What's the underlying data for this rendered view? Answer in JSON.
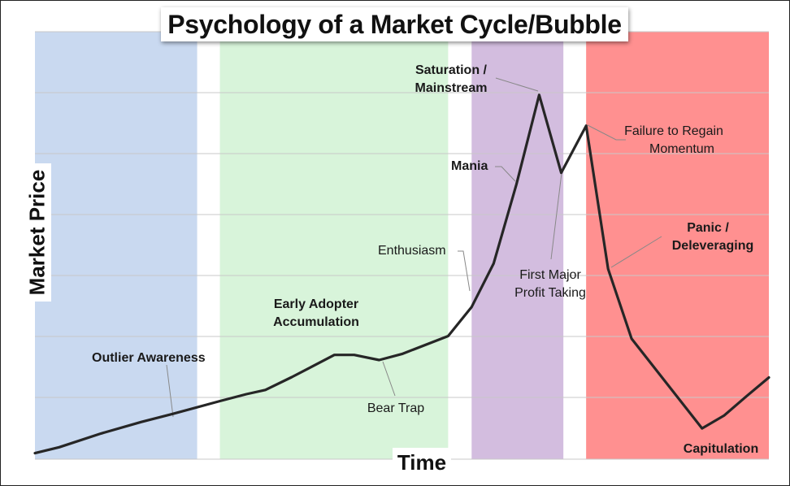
{
  "chart_data": {
    "type": "line",
    "title": "Psychology of a Market Cycle/Bubble",
    "xlabel": "Time",
    "ylabel": "Market Price",
    "xlim": [
      0,
      100
    ],
    "ylim": [
      0,
      100
    ],
    "grid": true,
    "phases": [
      {
        "x_start": 0,
        "x_end": 22.1,
        "color": "#c9d9f0"
      },
      {
        "x_start": 25.2,
        "x_end": 56.3,
        "color": "#d8f4da"
      },
      {
        "x_start": 59.5,
        "x_end": 72.0,
        "color": "#d3bddf"
      },
      {
        "x_start": 75.1,
        "x_end": 100,
        "color": "#ff9090"
      }
    ],
    "series": [
      {
        "x": [
          0,
          3.3,
          9.0,
          14.5,
          18.8,
          25.2,
          28.8,
          31.4,
          35.0,
          40.8,
          43.5,
          46.9,
          50.0,
          56.3,
          59.5,
          62.5,
          65.6,
          68.7,
          71.7,
          75.1,
          78.1,
          81.3,
          90.9,
          93.9,
          97.0,
          100
        ],
        "y": [
          1.4,
          2.8,
          6.0,
          8.7,
          10.6,
          13.6,
          15.2,
          16.2,
          19.2,
          24.4,
          24.4,
          23.2,
          24.6,
          28.8,
          35.6,
          45.8,
          64.3,
          85.2,
          67.0,
          78.0,
          44.5,
          28.2,
          7.2,
          10.2,
          14.8,
          19.1
        ]
      }
    ],
    "annotations": [
      {
        "text": "Outlier Awareness",
        "bold": true,
        "x": 18.8,
        "y": 10.6
      },
      {
        "text": "Early Adopter Accumulation",
        "bold": true,
        "x": 40.8,
        "y": 24.4
      },
      {
        "text": "Bear Trap",
        "bold": false,
        "x": 48.5,
        "y": 23.6
      },
      {
        "text": "Enthusiasm",
        "bold": false,
        "x": 59.5,
        "y": 35.6
      },
      {
        "text": "Mania",
        "bold": true,
        "x": 65.6,
        "y": 64.3
      },
      {
        "text": "Saturation / Mainstream",
        "bold": true,
        "x": 68.7,
        "y": 85.2
      },
      {
        "text": "First Major Profit Taking",
        "bold": false,
        "x": 71.7,
        "y": 67.0
      },
      {
        "text": "Failure to Regain Momentum",
        "bold": false,
        "x": 75.1,
        "y": 78.0
      },
      {
        "text": "Panic / Deleveraging",
        "bold": true,
        "x": 78.1,
        "y": 44.5
      },
      {
        "text": "Capitulation",
        "bold": true,
        "x": 90.9,
        "y": 7.2
      }
    ]
  }
}
